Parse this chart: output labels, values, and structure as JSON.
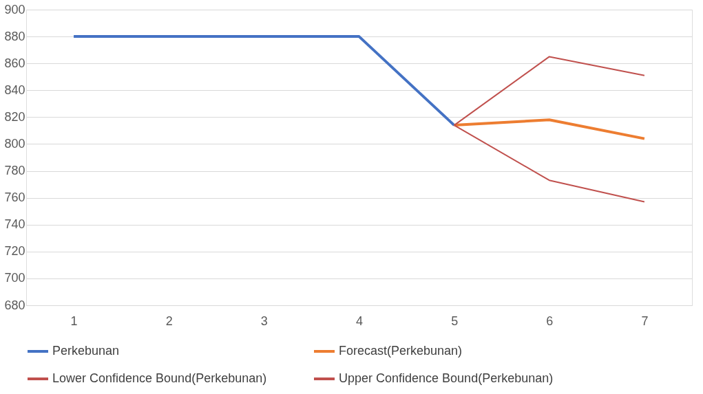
{
  "chart_data": {
    "type": "line",
    "categories": [
      "1",
      "2",
      "3",
      "4",
      "5",
      "6",
      "7"
    ],
    "series": [
      {
        "name": "Perkebunan",
        "color": "#4472c4",
        "values": [
          880,
          880,
          880,
          880,
          814,
          null,
          null
        ]
      },
      {
        "name": "Forecast(Perkebunan)",
        "color": "#ed7d31",
        "values": [
          null,
          null,
          null,
          null,
          814,
          818,
          804
        ]
      },
      {
        "name": "Lower Confidence Bound(Perkebunan)",
        "color": "#c0504d",
        "values": [
          null,
          null,
          null,
          null,
          814,
          773,
          757
        ]
      },
      {
        "name": "Upper Confidence Bound(Perkebunan)",
        "color": "#c0504d",
        "values": [
          null,
          null,
          null,
          null,
          814,
          865,
          851
        ]
      }
    ],
    "ylim": [
      680,
      900
    ],
    "yticks": [
      680,
      700,
      720,
      740,
      760,
      780,
      800,
      820,
      840,
      860,
      880,
      900
    ],
    "grid": "y",
    "legend": "bottom",
    "marker": "none",
    "line_style": "solid"
  }
}
